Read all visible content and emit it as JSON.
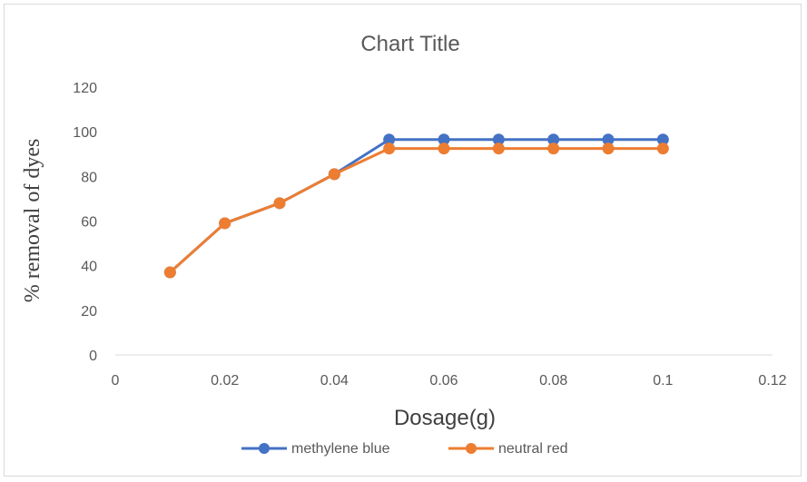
{
  "chart_data": {
    "type": "line",
    "title": "Chart Title",
    "xlabel": "Dosage(g)",
    "ylabel": "% removal of dyes",
    "xlim": [
      0,
      0.12
    ],
    "ylim": [
      0,
      120
    ],
    "x_ticks": [
      "0",
      "0.02",
      "0.04",
      "0.06",
      "0.08",
      "0.1",
      "0.12"
    ],
    "y_ticks": [
      "0",
      "20",
      "40",
      "60",
      "80",
      "100",
      "120"
    ],
    "grid": false,
    "legend_position": "bottom",
    "series": [
      {
        "name": "methylene blue",
        "color": "#4472c4",
        "x": [
          0.01,
          0.02,
          0.03,
          0.04,
          0.05,
          0.06,
          0.07,
          0.08,
          0.09,
          0.1
        ],
        "y": [
          37,
          59,
          68,
          81,
          96.5,
          96.5,
          96.5,
          96.5,
          96.5,
          96.5
        ]
      },
      {
        "name": "neutral red",
        "color": "#ed7d31",
        "x": [
          0.01,
          0.02,
          0.03,
          0.04,
          0.05,
          0.06,
          0.07,
          0.08,
          0.09,
          0.1
        ],
        "y": [
          37,
          59,
          68,
          81,
          92.5,
          92.5,
          92.5,
          92.5,
          92.5,
          92.5
        ]
      }
    ]
  }
}
